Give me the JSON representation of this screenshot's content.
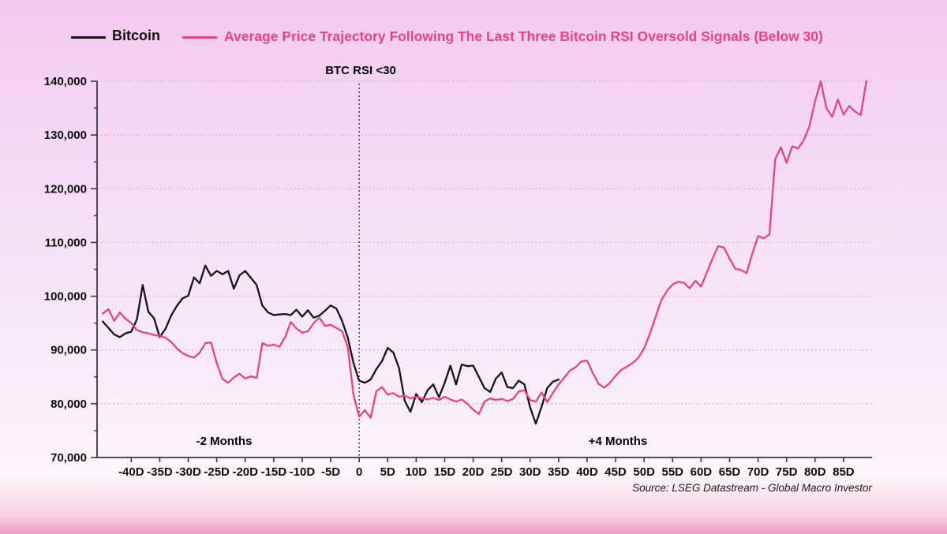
{
  "legend": {
    "bitcoin_label": "Bitcoin",
    "average_label": "Average Price Trajectory Following The Last Three Bitcoin RSI Oversold Signals (Below 30)"
  },
  "annotations": {
    "rsi_label": "BTC RSI <30",
    "minus_2_months": "-2 Months",
    "plus_4_months": "+4 Months",
    "source": "Source: LSEG Datastream - Global Macro Investor"
  },
  "colors": {
    "bitcoin_line": "#141414",
    "average_line": "#e8457c",
    "legend_average_text": "#e8457c",
    "grid": "#b9a8bc",
    "axis": "#3a3a3a",
    "event_line": "#222222"
  },
  "chart_data": {
    "type": "line",
    "title": "",
    "xlabel": "",
    "ylabel": "",
    "x_unit": "days relative to RSI oversold signal (D)",
    "xlim": [
      -46,
      90
    ],
    "ylim": [
      70000,
      140000
    ],
    "grid": true,
    "legend_position": "top",
    "event_line_x": 0,
    "y_ticks": {
      "values": [
        70000,
        80000,
        90000,
        100000,
        110000,
        120000,
        130000,
        140000
      ],
      "labels": [
        "70,000",
        "80,000",
        "90,000",
        "100,000",
        "110,000",
        "120,000",
        "130,000",
        "140,000"
      ],
      "minor_step": 5000
    },
    "x_ticks": {
      "values": [
        -40,
        -35,
        -30,
        -25,
        -20,
        -15,
        -10,
        -5,
        0,
        5,
        10,
        15,
        20,
        25,
        30,
        35,
        40,
        45,
        50,
        55,
        60,
        65,
        70,
        75,
        80,
        85
      ],
      "labels": [
        "-40D",
        "-35D",
        "-30D",
        "-25D",
        "-20D",
        "-15D",
        "-10D",
        "-5D",
        "0",
        "5D",
        "10D",
        "15D",
        "20D",
        "25D",
        "30D",
        "35D",
        "40D",
        "45D",
        "50D",
        "55D",
        "60D",
        "65D",
        "70D",
        "75D",
        "80D",
        "85D"
      ]
    },
    "series": [
      {
        "name": "Bitcoin",
        "color": "#141414",
        "x_start": -45,
        "x_step": 1,
        "values": [
          95300,
          94100,
          92900,
          92400,
          93100,
          93400,
          95700,
          102100,
          97100,
          95900,
          92400,
          93900,
          96400,
          98200,
          99600,
          100100,
          103500,
          102400,
          105700,
          103800,
          104700,
          104100,
          104700,
          101400,
          103900,
          104700,
          103400,
          102100,
          98300,
          97000,
          96500,
          96600,
          96700,
          96500,
          97500,
          96200,
          97400,
          96000,
          96400,
          97300,
          98300,
          97700,
          95400,
          92300,
          87600,
          84300,
          83900,
          84500,
          86400,
          87900,
          90400,
          89500,
          86600,
          80500,
          78500,
          81800,
          80300,
          82500,
          83600,
          81200,
          83900,
          87100,
          83600,
          87300,
          87000,
          87100,
          85000,
          82900,
          82200,
          84700,
          85800,
          83100,
          82900,
          84300,
          83600,
          79300,
          76300,
          79400,
          82900,
          84100,
          84500
        ]
      },
      {
        "name": "Average Price Trajectory Following The Last Three Bitcoin RSI Oversold Signals (Below 30)",
        "color": "#e8457c",
        "x_start": -45,
        "x_step": 1,
        "values": [
          96800,
          97600,
          95400,
          97000,
          95800,
          95000,
          93700,
          93300,
          93100,
          92800,
          92600,
          92300,
          91500,
          90300,
          89400,
          88900,
          88600,
          89500,
          91300,
          91400,
          87600,
          84600,
          83900,
          84900,
          85600,
          84700,
          85100,
          84800,
          91300,
          90800,
          91000,
          90600,
          92400,
          95200,
          94000,
          93200,
          93500,
          95000,
          96000,
          94500,
          94700,
          94100,
          93500,
          90500,
          81700,
          77600,
          78800,
          77400,
          82300,
          83100,
          81700,
          82000,
          81300,
          81500,
          81000,
          81300,
          81000,
          80800,
          81100,
          80700,
          81300,
          80800,
          80400,
          80800,
          80000,
          78900,
          78100,
          80400,
          81000,
          80700,
          80900,
          80500,
          80900,
          82300,
          82500,
          80700,
          80400,
          82100,
          80300,
          82000,
          83600,
          84900,
          86200,
          86800,
          87900,
          88000,
          85700,
          83700,
          83000,
          83900,
          85200,
          86300,
          86900,
          87600,
          88600,
          90300,
          93000,
          96100,
          99200,
          101000,
          102200,
          102700,
          102500,
          101500,
          102900,
          101800,
          104400,
          107000,
          109300,
          109100,
          107000,
          105100,
          104900,
          104300,
          108000,
          111200,
          110800,
          111500,
          125500,
          127700,
          124800,
          127900,
          127500,
          129000,
          131600,
          136300,
          140000,
          135000,
          133400,
          136600,
          133800,
          135400,
          134400,
          133700,
          140000
        ]
      }
    ]
  }
}
